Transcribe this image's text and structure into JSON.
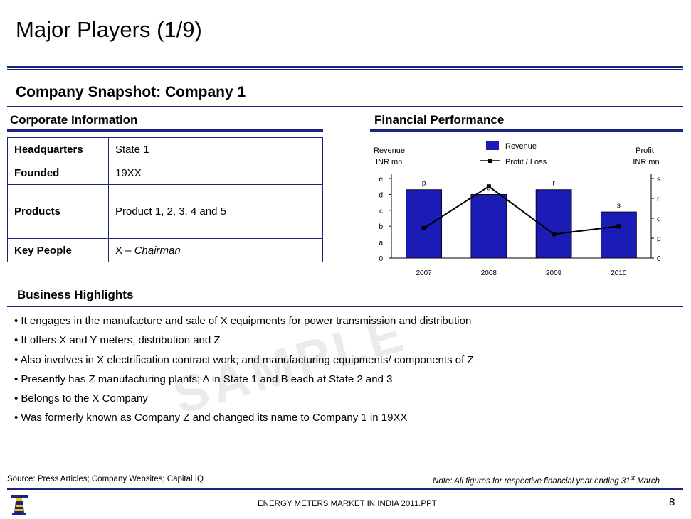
{
  "slide": {
    "title": "Major Players (1/9)",
    "subtitle": "Company Snapshot: Company 1",
    "page_number": "8",
    "footer_center": "ENERGY METERS MARKET IN INDIA 2011.PPT"
  },
  "corporate": {
    "heading": "Corporate Information",
    "rows": [
      {
        "key": "Headquarters",
        "value": "State 1"
      },
      {
        "key": "Founded",
        "value": "19XX"
      },
      {
        "key": "Products",
        "value": "Product 1, 2, 3, 4 and 5"
      },
      {
        "key": "Key People",
        "value_prefix": "X – ",
        "value_italic": "Chairman"
      }
    ]
  },
  "financial": {
    "heading": "Financial Performance"
  },
  "chart_data": {
    "type": "bar",
    "categories": [
      "2007",
      "2008",
      "2009",
      "2010"
    ],
    "series": [
      {
        "name": "Revenue",
        "type": "bar",
        "axis": "left",
        "values": [
          4.3,
          4.0,
          4.3,
          2.9
        ],
        "labels": [
          "p",
          "q",
          "r",
          "s"
        ],
        "color": "#1b1bb5"
      },
      {
        "name": "Profit / Loss",
        "type": "line",
        "axis": "right",
        "values": [
          1.5,
          3.6,
          1.2,
          1.6
        ],
        "color": "#000000"
      }
    ],
    "left_axis": {
      "title_line1": "Revenue",
      "title_line2": "INR mn",
      "ticks": [
        "0",
        "a",
        "b",
        "c",
        "d",
        "e"
      ]
    },
    "right_axis": {
      "title_line1": "Profit",
      "title_line2": "INR mn",
      "ticks": [
        "0",
        "p",
        "q",
        "r",
        "s"
      ]
    },
    "ylim_left": [
      0,
      5
    ],
    "ylim_right": [
      0,
      4
    ],
    "legend": "top-center"
  },
  "business": {
    "heading": "Business Highlights",
    "bullets": [
      "• It engages in the manufacture and sale of X equipments for power transmission and distribution",
      "• It offers X and Y meters, distribution and Z",
      "• Also involves in X electrification contract work; and manufacturing equipments/ components of Z",
      "• Presently has Z manufacturing plants; A in State 1 and B each at State 2 and 3",
      "• Belongs to the X Company",
      "• Was formerly known as Company Z and changed its name to Company 1 in 19XX"
    ]
  },
  "watermark": "SAMPLE",
  "footer": {
    "source": "Source: Press Articles; Company Websites; Capital IQ",
    "note_prefix": "Note: All figures for respective financial year ending 31",
    "note_sup": "st",
    "note_suffix": " March"
  },
  "logo_icon": "lighthouse-icon"
}
